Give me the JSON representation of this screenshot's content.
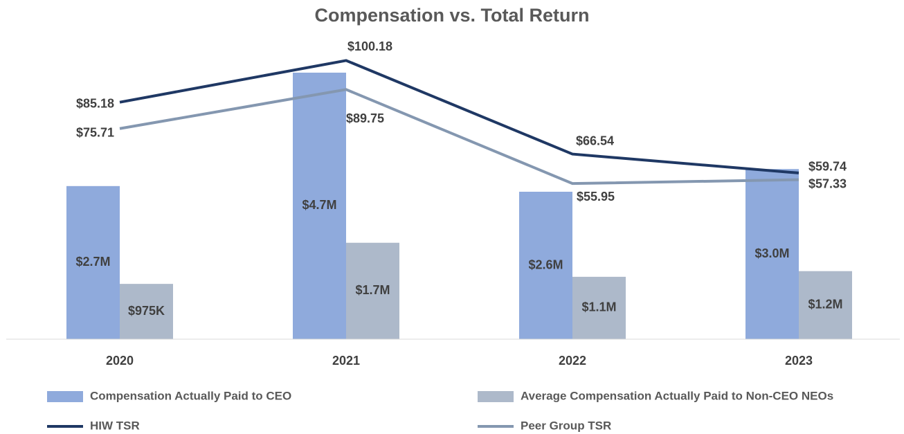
{
  "chart_data": {
    "type": "bar_line",
    "title": "Compensation vs. Total Return",
    "categories": [
      "2020",
      "2021",
      "2022",
      "2023"
    ],
    "series": [
      {
        "name": "Compensation Actually Paid to CEO",
        "type": "bar",
        "color": "#8faadc",
        "values": [
          2.7,
          4.7,
          2.6,
          3.0
        ],
        "value_labels": [
          "$2.7M",
          "$4.7M",
          "$2.6M",
          "$3.0M"
        ]
      },
      {
        "name": "Average Compensation Actually Paid to Non-CEO NEOs",
        "type": "bar",
        "color": "#adb9ca",
        "values": [
          0.975,
          1.7,
          1.1,
          1.2
        ],
        "value_labels": [
          "$975K",
          "$1.7M",
          "$1.1M",
          "$1.2M"
        ]
      },
      {
        "name": "HIW TSR",
        "type": "line",
        "axis": "y2",
        "color": "#1f3864",
        "values": [
          85.18,
          100.18,
          66.54,
          59.74
        ],
        "value_labels": [
          "$85.18",
          "$100.18",
          "$66.54",
          "$59.74"
        ]
      },
      {
        "name": "Peer Group TSR",
        "type": "line",
        "axis": "y2",
        "color": "#8497b0",
        "values": [
          75.71,
          89.75,
          55.95,
          57.33
        ],
        "value_labels": [
          "$75.71",
          "$89.75",
          "$55.95",
          "$57.33"
        ]
      }
    ],
    "ylim": [
      0,
      5.2
    ],
    "y2lim": [
      0,
      106
    ]
  }
}
